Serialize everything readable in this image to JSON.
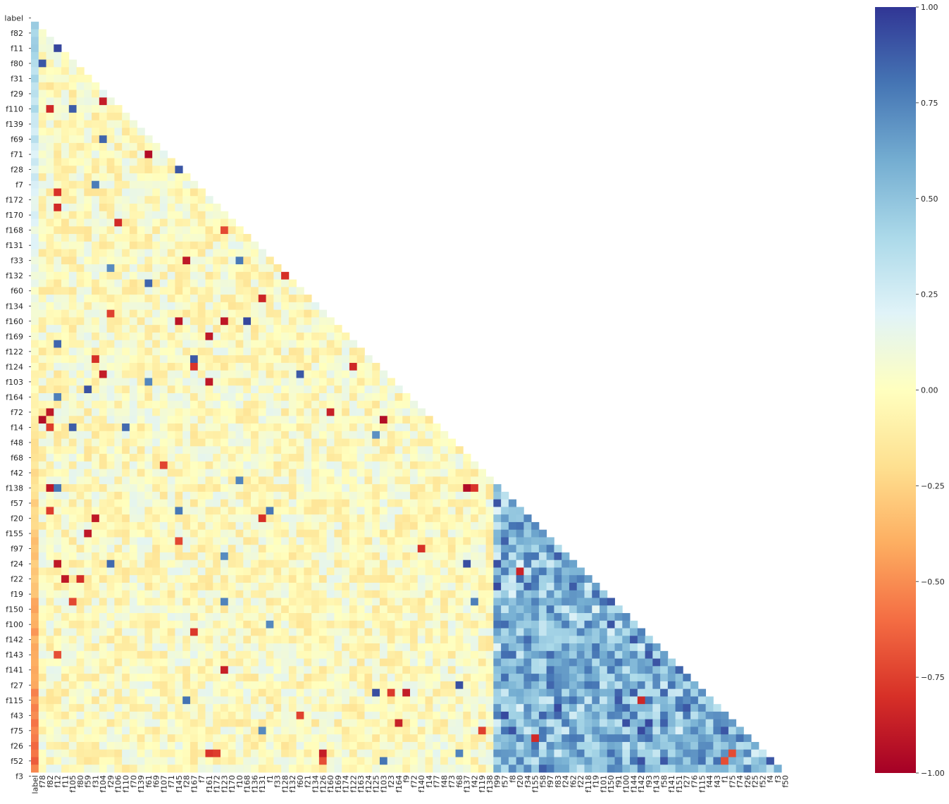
{
  "chart_data": {
    "type": "heatmap",
    "subtype": "lower-triangle correlation matrix",
    "title": "",
    "xlabel": "",
    "ylabel": "",
    "colormap": "RdYlBu",
    "colormap_stops": [
      "#a50026",
      "#d73027",
      "#f46d43",
      "#fdae61",
      "#fee090",
      "#ffffbf",
      "#e0f3f8",
      "#abd9e9",
      "#74add1",
      "#4575b4",
      "#313695"
    ],
    "vmin": -1.0,
    "vmax": 1.0,
    "mask": "upper triangle (including diagonal)",
    "colorbar": {
      "position": "right",
      "ticks": [
        -1.0,
        -0.75,
        -0.5,
        -0.25,
        0.0,
        0.25,
        0.5,
        0.75,
        1.0
      ],
      "tick_labels": [
        "−1.00",
        "−0.75",
        "−0.50",
        "−0.25",
        "0.00",
        "0.25",
        "0.50",
        "0.75",
        "1.00"
      ]
    },
    "y_tick_labels": [
      "label",
      "f82",
      "f11",
      "f80",
      "f31",
      "f29",
      "f110",
      "f139",
      "f69",
      "f71",
      "f28",
      "f7",
      "f172",
      "f170",
      "f168",
      "f131",
      "f33",
      "f132",
      "f60",
      "f134",
      "f160",
      "f169",
      "f122",
      "f124",
      "f103",
      "f164",
      "f72",
      "f14",
      "f48",
      "f68",
      "f42",
      "f138",
      "f57",
      "f20",
      "f155",
      "f97",
      "f24",
      "f22",
      "f19",
      "f150",
      "f100",
      "f142",
      "f143",
      "f141",
      "f27",
      "f115",
      "f43",
      "f75",
      "f26",
      "f52",
      "f3"
    ],
    "x_tick_labels": [
      "label",
      "f78",
      "f82",
      "f12",
      "f11",
      "f105",
      "f80",
      "f59",
      "f31",
      "f104",
      "f29",
      "f106",
      "f110",
      "f70",
      "f139",
      "f61",
      "f69",
      "f107",
      "f71",
      "f145",
      "f28",
      "f167",
      "f7",
      "f161",
      "f172",
      "f123",
      "f170",
      "f10",
      "f168",
      "f136",
      "f131",
      "f1",
      "f33",
      "f128",
      "f132",
      "f60",
      "f21",
      "f134",
      "f126",
      "f160",
      "f169",
      "f174",
      "f122",
      "f163",
      "f124",
      "f125",
      "f103",
      "f23",
      "f164",
      "f9",
      "f72",
      "f140",
      "f14",
      "f77",
      "f48",
      "f73",
      "f68",
      "f137",
      "f42",
      "f119",
      "f138",
      "f99",
      "f57",
      "f8",
      "f20",
      "f34",
      "f155",
      "f58",
      "f97",
      "f83",
      "f24",
      "f62",
      "f22",
      "f118",
      "f19",
      "f101",
      "f150",
      "f91",
      "f100",
      "f144",
      "f142",
      "f93",
      "f143",
      "f58",
      "f141",
      "f151",
      "f27",
      "f76",
      "f115",
      "f44",
      "f43",
      "f1",
      "f75",
      "f74",
      "f26",
      "f25",
      "f52",
      "f4",
      "f3",
      "f50"
    ],
    "strong_correlations_estimated": [
      {
        "row": "f11",
        "col": "f12",
        "value": 0.95
      },
      {
        "row": "f80",
        "col": "f78",
        "value": 0.9
      },
      {
        "row": "f110",
        "col": "f105",
        "value": 0.88
      },
      {
        "row": "f69",
        "col": "f104",
        "value": 0.85
      },
      {
        "row": "f28",
        "col": "f145",
        "value": 0.9
      },
      {
        "row": "f33",
        "col": "f28",
        "value": -0.9
      },
      {
        "row": "f60",
        "col": "f61",
        "value": 0.85
      },
      {
        "row": "f134",
        "col": "f131",
        "value": -0.85
      },
      {
        "row": "f169",
        "col": "f123",
        "value": -0.9
      },
      {
        "row": "f122",
        "col": "f161",
        "value": -0.9
      },
      {
        "row": "f164",
        "col": "f161",
        "value": -0.9
      },
      {
        "row": "f14",
        "col": "f82",
        "value": -0.9
      },
      {
        "row": "f57",
        "col": "f82",
        "value": -0.9
      },
      {
        "row": "f155",
        "col": "f31",
        "value": -0.9
      },
      {
        "row": "f97",
        "col": "f59",
        "value": -0.9
      },
      {
        "row": "f22",
        "col": "f12",
        "value": -0.9
      },
      {
        "row": "f19",
        "col": "f11",
        "value": -0.9
      },
      {
        "row": "f142",
        "col": "f150",
        "value": 0.9
      },
      {
        "row": "f143",
        "col": "f144",
        "value": 0.9
      },
      {
        "row": "f141",
        "col": "f93",
        "value": 0.9
      },
      {
        "row": "f3",
        "col": "f4",
        "value": 0.9
      }
    ]
  }
}
